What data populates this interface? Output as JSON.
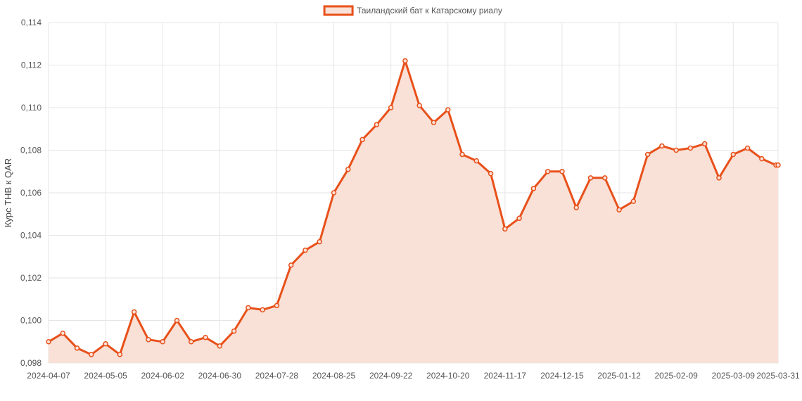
{
  "chart_data": {
    "type": "area",
    "legend": {
      "label": "Таиландский бат к Катарскому риалу",
      "placement": "top-center"
    },
    "ylabel": "Курс THB к QAR",
    "xlabel": "",
    "ylim": [
      0.098,
      0.114
    ],
    "y_ticks": [
      "0,098",
      "0,100",
      "0,102",
      "0,104",
      "0,106",
      "0,108",
      "0,110",
      "0,112",
      "0,114"
    ],
    "x_ticks": [
      "2024-04-07",
      "2024-05-05",
      "2024-06-02",
      "2024-06-30",
      "2024-07-28",
      "2024-08-25",
      "2024-09-22",
      "2024-10-20",
      "2024-11-17",
      "2024-12-15",
      "2025-01-12",
      "2025-02-09",
      "2025-03-09",
      "2025-03-31"
    ],
    "grid": true,
    "colors": {
      "line": "#e8501a",
      "fill": "#f9e1d7",
      "grid": "#e6e6e6"
    },
    "series": [
      {
        "name": "Таиландский бат к Катарскому риалу",
        "x": [
          "2024-04-07",
          "2024-04-14",
          "2024-04-21",
          "2024-04-28",
          "2024-05-05",
          "2024-05-12",
          "2024-05-19",
          "2024-05-26",
          "2024-06-02",
          "2024-06-09",
          "2024-06-16",
          "2024-06-23",
          "2024-06-30",
          "2024-07-07",
          "2024-07-14",
          "2024-07-21",
          "2024-07-28",
          "2024-08-04",
          "2024-08-11",
          "2024-08-18",
          "2024-08-25",
          "2024-09-01",
          "2024-09-08",
          "2024-09-15",
          "2024-09-22",
          "2024-09-29",
          "2024-10-06",
          "2024-10-13",
          "2024-10-20",
          "2024-10-27",
          "2024-11-03",
          "2024-11-10",
          "2024-11-17",
          "2024-11-24",
          "2024-12-01",
          "2024-12-08",
          "2024-12-15",
          "2024-12-22",
          "2024-12-29",
          "2025-01-05",
          "2025-01-12",
          "2025-01-19",
          "2025-01-26",
          "2025-02-02",
          "2025-02-09",
          "2025-02-16",
          "2025-02-23",
          "2025-03-02",
          "2025-03-09",
          "2025-03-16",
          "2025-03-23",
          "2025-03-30",
          "2025-03-31"
        ],
        "values": [
          0.099,
          0.0994,
          0.0987,
          0.0984,
          0.0989,
          0.0984,
          0.1004,
          0.0991,
          0.099,
          0.1,
          0.099,
          0.0992,
          0.0988,
          0.0995,
          0.1006,
          0.1005,
          0.1007,
          0.1026,
          0.1033,
          0.1037,
          0.106,
          0.1071,
          0.1085,
          0.1092,
          0.11,
          0.1122,
          0.1101,
          0.1093,
          0.1099,
          0.1078,
          0.1075,
          0.1069,
          0.1043,
          0.1048,
          0.1062,
          0.107,
          0.107,
          0.1053,
          0.1067,
          0.1067,
          0.1052,
          0.1056,
          0.1078,
          0.1082,
          0.108,
          0.1081,
          0.1083,
          0.1067,
          0.1078,
          0.1081,
          0.1076,
          0.1073,
          0.1073
        ]
      }
    ]
  }
}
